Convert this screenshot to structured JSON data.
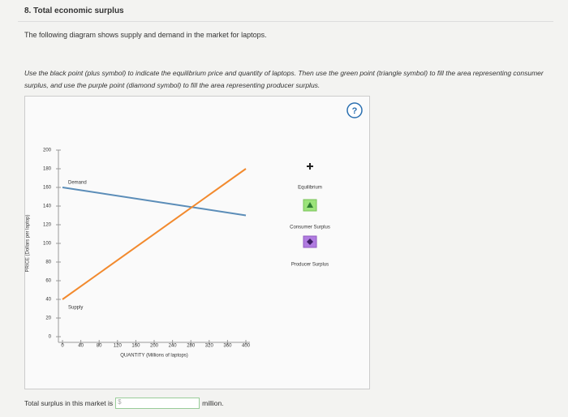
{
  "header": {
    "title": "8. Total economic surplus"
  },
  "description": "The following diagram shows supply and demand in the market for laptops.",
  "instructions": "Use the black point (plus symbol) to indicate the equilibrium price and quantity of laptops. Then use the green point (triangle symbol) to fill the area representing consumer surplus, and use the purple point (diamond symbol) to fill the area representing producer surplus.",
  "help_icon": "?",
  "chart_data": {
    "type": "line",
    "xlabel": "QUANTITY (Millions of laptops)",
    "ylabel": "PRICE (Dollars per laptop)",
    "x": [
      0,
      400
    ],
    "series": [
      {
        "name": "Demand",
        "color": "#5b8db8",
        "values": [
          160,
          130
        ]
      },
      {
        "name": "Supply",
        "color": "#f28a2e",
        "values": [
          40,
          180
        ]
      }
    ],
    "xlim": [
      0,
      400
    ],
    "ylim": [
      0,
      200
    ],
    "xticks": [
      0,
      40,
      80,
      120,
      160,
      200,
      240,
      280,
      320,
      360,
      400
    ],
    "yticks": [
      0,
      20,
      40,
      60,
      80,
      100,
      120,
      140,
      160,
      180,
      200
    ]
  },
  "tools": [
    {
      "label": "Equilibrium",
      "symbol": "+"
    },
    {
      "label": "Consumer Surplus",
      "symbol": "▲"
    },
    {
      "label": "Producer Surplus",
      "symbol": "◆"
    }
  ],
  "answer": {
    "prefix": "Total surplus in this market is",
    "currency": "$",
    "suffix": "million."
  }
}
